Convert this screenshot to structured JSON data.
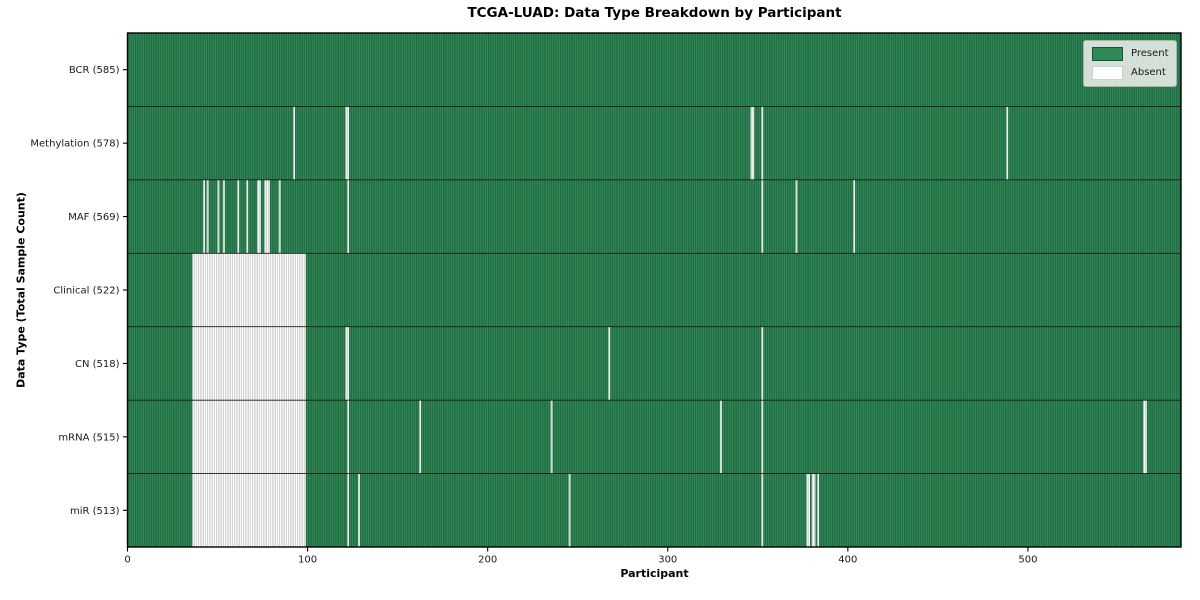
{
  "title": "TCGA-LUAD: Data Type Breakdown by Participant",
  "chart_data": {
    "type": "heatmap",
    "title": "TCGA-LUAD: Data Type Breakdown by Participant",
    "xlabel": "Participant",
    "ylabel": "Data Type (Total Sample Count)",
    "n_participants": 585,
    "x_ticks": [
      0,
      100,
      200,
      300,
      400,
      500
    ],
    "legend": [
      {
        "label": "Present",
        "color": "#2E8B57"
      },
      {
        "label": "Absent",
        "color": "#FFFFFF"
      }
    ],
    "colors": {
      "present": "#2E8B57",
      "present_edge": "#1B5233",
      "absent": "#FFFFFF",
      "absent_edge": "#A6A6A6",
      "row_separator": "#1a1a1a",
      "spine": "#000000",
      "tick_text": "#1a1a1a"
    },
    "rows": [
      {
        "label": "BCR (585)",
        "data_type": "BCR",
        "present_count": 585,
        "absent_ranges": []
      },
      {
        "label": "Methylation (578)",
        "data_type": "Methylation",
        "present_count": 578,
        "absent_ranges": [
          [
            92,
            1
          ],
          [
            121,
            2
          ],
          [
            346,
            2
          ],
          [
            352,
            1
          ],
          [
            488,
            1
          ]
        ]
      },
      {
        "label": "MAF (569)",
        "data_type": "MAF",
        "present_count": 569,
        "absent_ranges": [
          [
            42,
            1
          ],
          [
            44,
            1
          ],
          [
            50,
            1
          ],
          [
            53,
            1
          ],
          [
            61,
            1
          ],
          [
            66,
            1
          ],
          [
            72,
            2
          ],
          [
            76,
            3
          ],
          [
            84,
            1
          ],
          [
            122,
            1
          ],
          [
            352,
            1
          ],
          [
            371,
            1
          ],
          [
            403,
            1
          ]
        ]
      },
      {
        "label": "Clinical (522)",
        "data_type": "Clinical",
        "present_count": 522,
        "absent_ranges": [
          [
            36,
            63
          ]
        ]
      },
      {
        "label": "CN (518)",
        "data_type": "CN",
        "present_count": 518,
        "absent_ranges": [
          [
            36,
            63
          ],
          [
            121,
            2
          ],
          [
            267,
            1
          ],
          [
            352,
            1
          ]
        ]
      },
      {
        "label": "mRNA (515)",
        "data_type": "mRNA",
        "present_count": 515,
        "absent_ranges": [
          [
            36,
            63
          ],
          [
            122,
            1
          ],
          [
            162,
            1
          ],
          [
            235,
            1
          ],
          [
            329,
            1
          ],
          [
            352,
            1
          ],
          [
            564,
            2
          ]
        ]
      },
      {
        "label": "miR (513)",
        "data_type": "miR",
        "present_count": 513,
        "absent_ranges": [
          [
            36,
            63
          ],
          [
            122,
            1
          ],
          [
            128,
            1
          ],
          [
            245,
            1
          ],
          [
            352,
            1
          ],
          [
            377,
            2
          ],
          [
            380,
            2
          ],
          [
            383,
            1
          ]
        ]
      }
    ]
  }
}
